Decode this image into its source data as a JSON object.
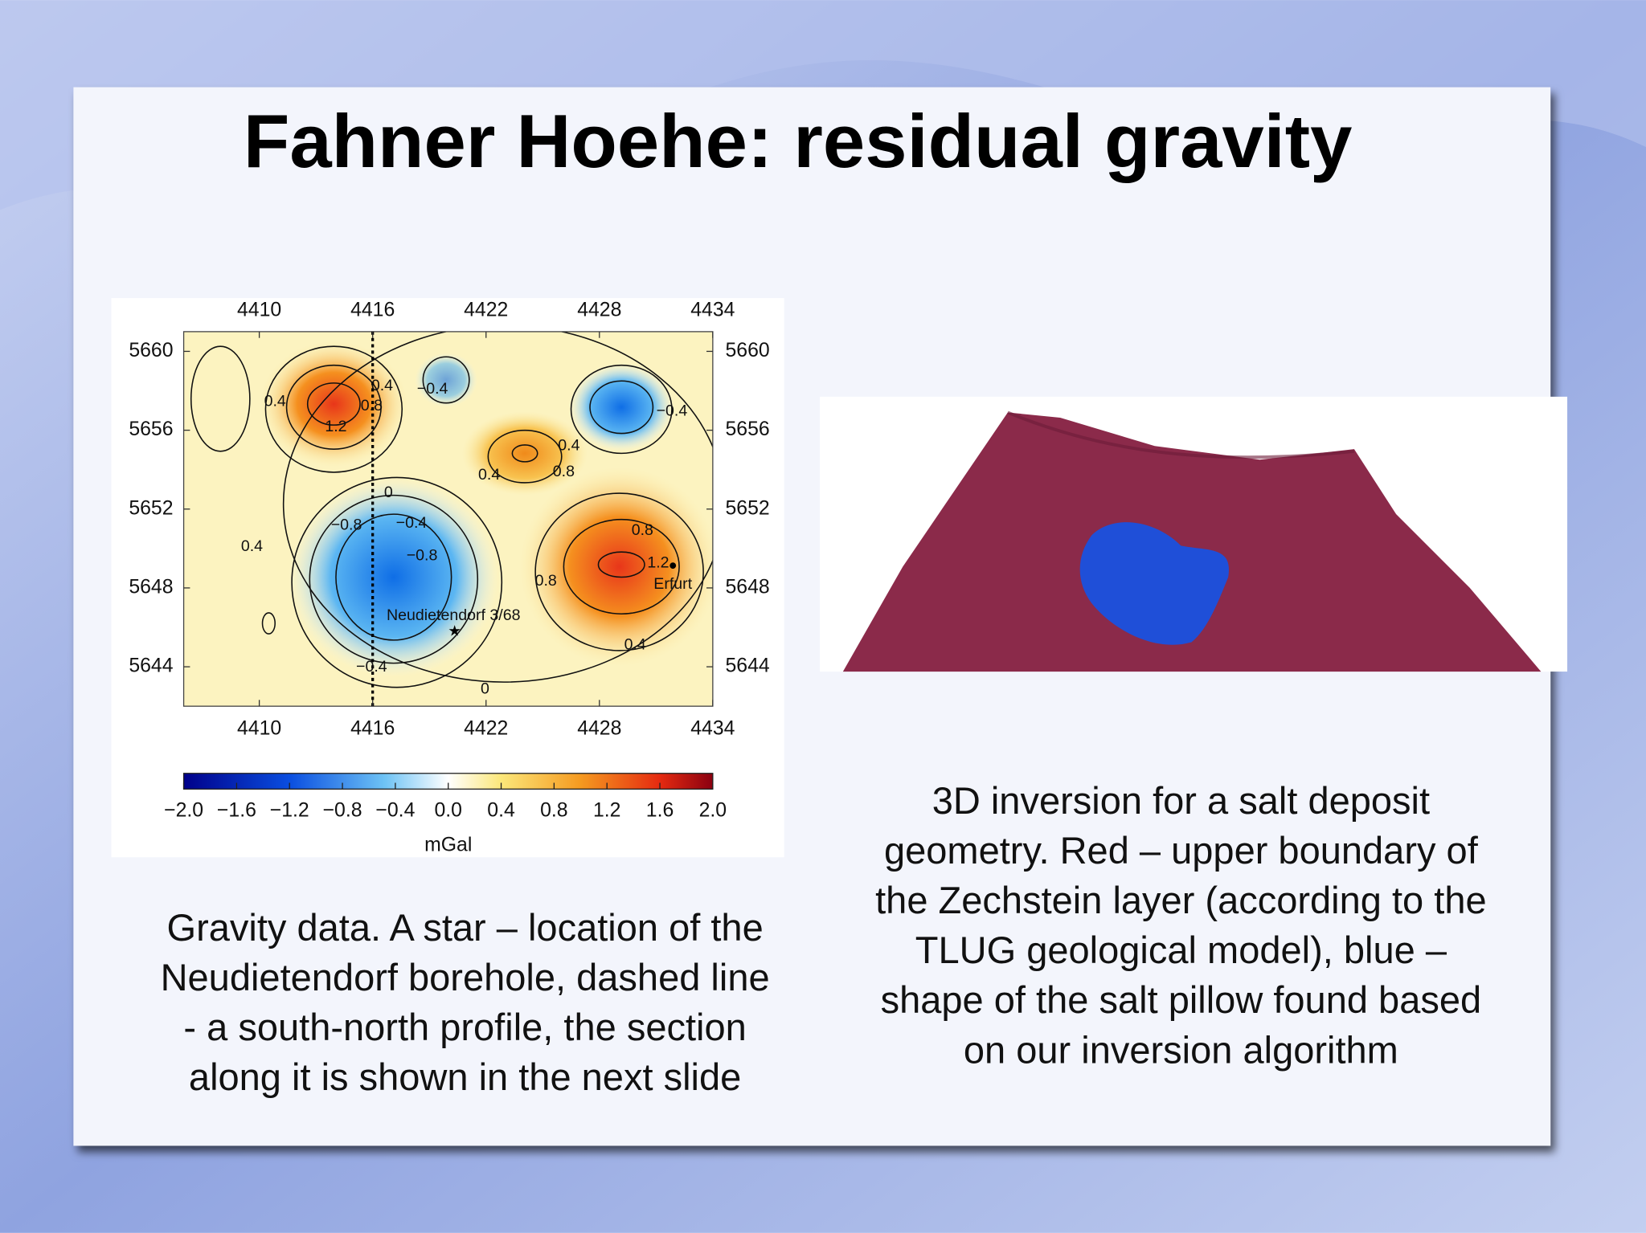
{
  "header": {
    "title": "Fahner Hoehe: residual gravity"
  },
  "chart_data": {
    "type": "contour",
    "xlim": [
      4406,
      4434
    ],
    "xticks": [
      4410,
      4416,
      4422,
      4428,
      4434
    ],
    "ylim": [
      5642,
      5661
    ],
    "yticks": [
      5644,
      5648,
      5652,
      5656,
      5660
    ],
    "colorbar": {
      "label": "mGal",
      "lim": [
        -2,
        2
      ],
      "ticks": [
        {
          "value": -2,
          "label": "−2.0"
        },
        {
          "value": -1.6,
          "label": "−1.6"
        },
        {
          "value": -1.2,
          "label": "−1.2"
        },
        {
          "value": -0.8,
          "label": "−0.8"
        },
        {
          "value": -0.4,
          "label": "−0.4"
        },
        {
          "value": 0,
          "label": "0.0"
        },
        0.4,
        0.8,
        1.2,
        1.6,
        {
          "value": 2,
          "label": "2.0"
        }
      ]
    },
    "contour_labels": [
      0.4,
      0.4,
      0.8,
      {
        "value": -0.4,
        "label": "−0.4"
      },
      1.2,
      {
        "value": -0.4,
        "label": "−0.4"
      },
      0.4,
      0.4,
      0.8,
      0,
      {
        "value": -0.8,
        "label": "−0.8"
      },
      {
        "value": -0.4,
        "label": "−0.4"
      },
      {
        "value": -0.8,
        "label": "−0.8"
      },
      0.4,
      0.8,
      1.2,
      0.8,
      0.4,
      {
        "value": -0.4,
        "label": "−0.4"
      },
      0
    ],
    "annotations": [
      "Neudietendorf 3/68",
      "Erfurt"
    ]
  },
  "captions": {
    "left": [
      "Gravity data. A star – location of the",
      "Neudietendorf borehole, dashed line",
      "-  a south-north profile, the section",
      "along it is shown in the next slide"
    ],
    "right": [
      "3D inversion for a salt deposit",
      "geometry. Red – upper boundary of",
      "the Zechstein layer (according to the",
      "TLUG geological model), blue –",
      "shape of the salt pillow found based",
      "on our inversion algorithm"
    ]
  }
}
